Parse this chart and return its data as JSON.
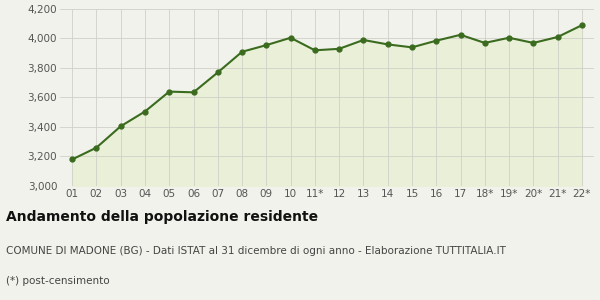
{
  "x_labels": [
    "01",
    "02",
    "03",
    "04",
    "05",
    "06",
    "07",
    "08",
    "09",
    "10",
    "11*",
    "12",
    "13",
    "14",
    "15",
    "16",
    "17",
    "18*",
    "19*",
    "20*",
    "21*",
    "22*"
  ],
  "values": [
    3180,
    3260,
    3405,
    3505,
    3640,
    3635,
    3770,
    3910,
    3955,
    4005,
    3920,
    3930,
    3990,
    3960,
    3940,
    3985,
    4025,
    3970,
    4005,
    3970,
    4010,
    4090
  ],
  "line_color": "#3a6b1e",
  "fill_color": "#eaf0d8",
  "marker": "o",
  "marker_size": 3.5,
  "line_width": 1.5,
  "ylim": [
    3000,
    4200
  ],
  "yticks": [
    3000,
    3200,
    3400,
    3600,
    3800,
    4000,
    4200
  ],
  "bg_color": "#f2f2ec",
  "plot_bg_color": "#f2f2ec",
  "grid_color": "#d0d0c8",
  "title": "Andamento della popolazione residente",
  "subtitle": "COMUNE DI MADONE (BG) - Dati ISTAT al 31 dicembre di ogni anno - Elaborazione TUTTITALIA.IT",
  "footnote": "(*) post-censimento",
  "title_fontsize": 10,
  "subtitle_fontsize": 7.5,
  "footnote_fontsize": 7.5,
  "tick_fontsize": 7.5
}
